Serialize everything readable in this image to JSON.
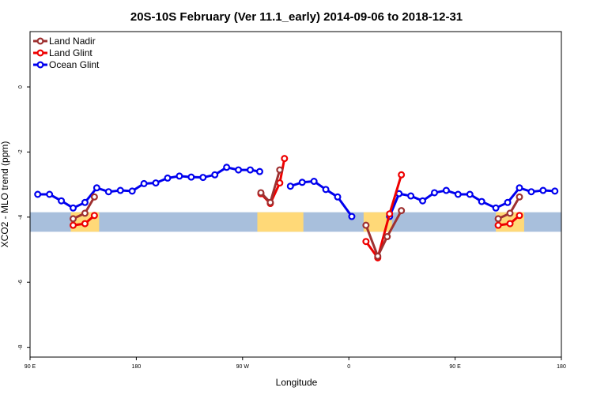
{
  "chart_data": {
    "type": "line",
    "title": "20S-10S February (Ver 11.1_early)   2014-09-06 to 2018-12-31",
    "xlabel": "Longitude",
    "ylabel": "XCO2 - MLO trend (ppm)",
    "xlim": [
      90,
      540
    ],
    "ylim": [
      -8.3,
      1.7
    ],
    "x_ticks": [
      {
        "value": 90,
        "label": "90 E"
      },
      {
        "value": 180,
        "label": "180"
      },
      {
        "value": 270,
        "label": "90 W"
      },
      {
        "value": 360,
        "label": "0"
      },
      {
        "value": 450,
        "label": "90 E"
      },
      {
        "value": 540,
        "label": "180"
      }
    ],
    "y_ticks": [
      {
        "value": 0,
        "label": "0"
      },
      {
        "value": -2,
        "label": "-2"
      },
      {
        "value": -4,
        "label": "-4"
      },
      {
        "value": -6,
        "label": "-6"
      },
      {
        "value": -8,
        "label": "-8"
      }
    ],
    "legend_position": "top-left",
    "grid": false,
    "map_strip": {
      "y_range": [
        -4.45,
        -3.85
      ],
      "ocean_color": "#a8bfdc",
      "land_color": "#ffd978",
      "land_segments": [
        [
          124.5,
          148.5
        ],
        [
          282.5,
          321.5
        ],
        [
          372.5,
          396.5
        ],
        [
          484.5,
          508.5
        ]
      ]
    },
    "series": [
      {
        "name": "Land Nadir",
        "color": "#9e3030",
        "segments": [
          [
            [
              126.5,
              -4.05
            ],
            [
              136.5,
              -3.88
            ],
            [
              144.5,
              -3.38
            ]
          ],
          [
            [
              285.5,
              -3.25
            ],
            [
              293.5,
              -3.55
            ],
            [
              301.5,
              -2.55
            ]
          ],
          [
            [
              374.5,
              -4.25
            ],
            [
              384.5,
              -5.2
            ],
            [
              392.5,
              -4.6
            ],
            [
              404.5,
              -3.8
            ]
          ],
          [
            [
              486.5,
              -4.05
            ],
            [
              496.5,
              -3.88
            ],
            [
              504.5,
              -3.38
            ]
          ]
        ]
      },
      {
        "name": "Land Glint",
        "color": "#ee0000",
        "segments": [
          [
            [
              126.5,
              -4.25
            ],
            [
              136.5,
              -4.2
            ],
            [
              144.5,
              -3.95
            ]
          ],
          [
            [
              285.5,
              -3.28
            ],
            [
              293.5,
              -3.58
            ],
            [
              301.5,
              -2.95
            ],
            [
              305.5,
              -2.2
            ]
          ],
          [
            [
              374.5,
              -4.75
            ],
            [
              384.5,
              -5.25
            ],
            [
              394.5,
              -3.9
            ],
            [
              404.5,
              -2.7
            ]
          ],
          [
            [
              486.5,
              -4.25
            ],
            [
              496.5,
              -4.2
            ],
            [
              504.5,
              -3.95
            ]
          ]
        ]
      },
      {
        "name": "Ocean Glint",
        "color": "#0000ee",
        "segments": [
          [
            [
              96.5,
              -3.3
            ],
            [
              106.5,
              -3.3
            ],
            [
              116.5,
              -3.5
            ],
            [
              126.5,
              -3.72
            ],
            [
              136.5,
              -3.55
            ],
            [
              146.5,
              -3.1
            ],
            [
              156.5,
              -3.22
            ],
            [
              166.5,
              -3.18
            ],
            [
              176.5,
              -3.2
            ],
            [
              186.5,
              -2.97
            ],
            [
              196.5,
              -2.95
            ],
            [
              206.5,
              -2.8
            ],
            [
              216.5,
              -2.74
            ],
            [
              226.5,
              -2.77
            ],
            [
              236.5,
              -2.78
            ],
            [
              246.5,
              -2.7
            ],
            [
              256.5,
              -2.47
            ],
            [
              266.5,
              -2.55
            ],
            [
              276.5,
              -2.55
            ],
            [
              284.5,
              -2.6
            ]
          ],
          [
            [
              310.5,
              -3.05
            ],
            [
              320.5,
              -2.93
            ],
            [
              330.5,
              -2.9
            ],
            [
              340.5,
              -3.15
            ],
            [
              350.5,
              -3.38
            ],
            [
              362.5,
              -3.98
            ]
          ],
          [
            [
              394.5,
              -3.98
            ],
            [
              402.5,
              -3.28
            ],
            [
              412.5,
              -3.35
            ],
            [
              422.5,
              -3.5
            ],
            [
              432.5,
              -3.25
            ],
            [
              442.5,
              -3.18
            ],
            [
              452.5,
              -3.3
            ],
            [
              462.5,
              -3.3
            ],
            [
              472.5,
              -3.52
            ],
            [
              484.5,
              -3.72
            ],
            [
              494.5,
              -3.55
            ],
            [
              504.5,
              -3.1
            ],
            [
              514.5,
              -3.22
            ],
            [
              524.5,
              -3.18
            ],
            [
              534.5,
              -3.2
            ]
          ]
        ]
      }
    ]
  }
}
